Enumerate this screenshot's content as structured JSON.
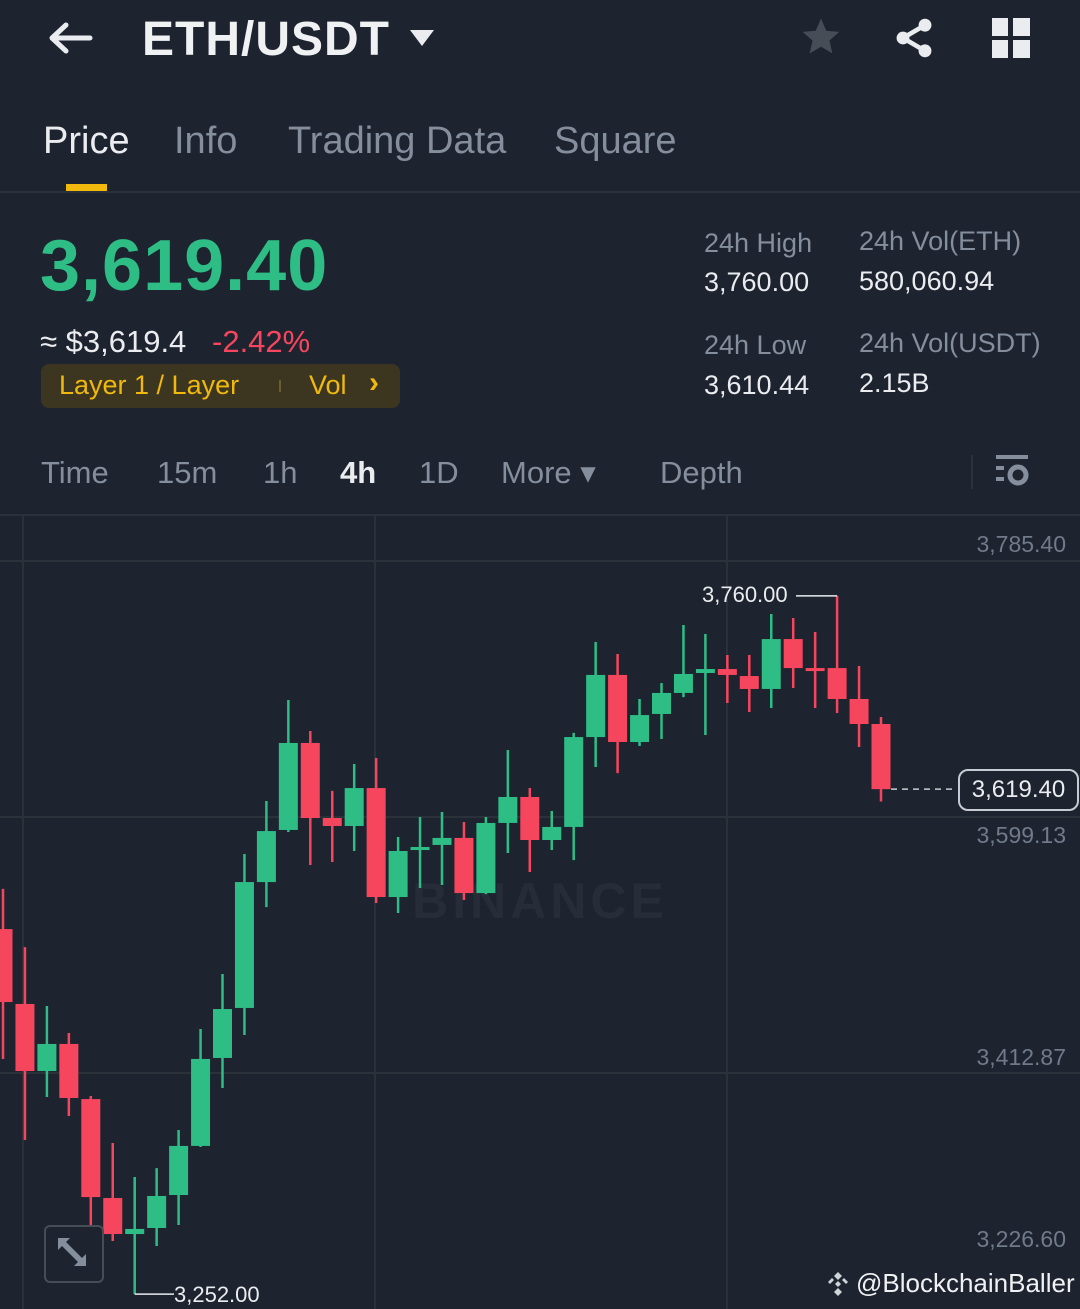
{
  "header": {
    "title": "ETH/USDT",
    "icons": [
      "back-arrow-icon",
      "dropdown-caret-icon",
      "star-icon",
      "share-icon",
      "grid-icon"
    ]
  },
  "tabs": [
    {
      "label": "Price",
      "active": true
    },
    {
      "label": "Info"
    },
    {
      "label": "Trading Data"
    },
    {
      "label": "Square"
    }
  ],
  "ticker": {
    "last_price": "3,619.40",
    "usd_price": "≈ $3,619.4",
    "change": "-2.42%",
    "tag_category": "Layer 1 / Layer",
    "tag_vol": "Vol",
    "tag_chevron": "›"
  },
  "stats": {
    "high_label": "24h High",
    "high": "3,760.00",
    "low_label": "24h Low",
    "low": "3,610.44",
    "vol_eth_label": "24h Vol(ETH)",
    "vol_eth": "580,060.94",
    "vol_usdt_label": "24h Vol(USDT)",
    "vol_usdt": "2.15B"
  },
  "intervals": [
    {
      "label": "Time"
    },
    {
      "label": "15m"
    },
    {
      "label": "1h"
    },
    {
      "label": "4h",
      "active": true
    },
    {
      "label": "1D"
    },
    {
      "label": "More ▾"
    },
    {
      "label": "Depth"
    }
  ],
  "colors": {
    "up": "#2ebd85",
    "down": "#f6465d",
    "accent": "#f0b90b",
    "background": "#1e2330"
  },
  "watermark": "BINANCE",
  "handle": "@BlockchainBaller",
  "chart_data": {
    "type": "candlestick",
    "interval": "4h",
    "y_ticks": [
      "3,785.40",
      "3,599.13",
      "3,412.87",
      "3,226.60"
    ],
    "ylim": [
      3226.6,
      3785.4
    ],
    "grid": true,
    "high_marker": "3,760.00",
    "low_marker": "3,252.00",
    "last_price_label": "3,619.40",
    "candles": [
      {
        "o": 3517.6,
        "h": 3546.8,
        "l": 3423.1,
        "c": 3464.5
      },
      {
        "o": 3463.1,
        "h": 3504.5,
        "l": 3364.1,
        "c": 3414.3
      },
      {
        "o": 3414.3,
        "h": 3461.6,
        "l": 3395.4,
        "c": 3434.0
      },
      {
        "o": 3434.0,
        "h": 3442.0,
        "l": 3381.6,
        "c": 3394.7
      },
      {
        "o": 3393.9,
        "h": 3396.1,
        "l": 3302.3,
        "c": 3322.6
      },
      {
        "o": 3321.9,
        "h": 3361.9,
        "l": 3290.6,
        "c": 3295.7
      },
      {
        "o": 3295.7,
        "h": 3337.2,
        "l": 3252.0,
        "c": 3299.4
      },
      {
        "o": 3300.1,
        "h": 3343.7,
        "l": 3287.0,
        "c": 3323.4
      },
      {
        "o": 3324.1,
        "h": 3371.4,
        "l": 3302.3,
        "c": 3359.8
      },
      {
        "o": 3359.8,
        "h": 3444.9,
        "l": 3359.0,
        "c": 3423.1
      },
      {
        "o": 3423.8,
        "h": 3484.9,
        "l": 3402.0,
        "c": 3459.4
      },
      {
        "o": 3460.2,
        "h": 3572.2,
        "l": 3440.5,
        "c": 3551.8
      },
      {
        "o": 3551.8,
        "h": 3610.8,
        "l": 3533.6,
        "c": 3588.9
      },
      {
        "o": 3589.7,
        "h": 3684.3,
        "l": 3588.2,
        "c": 3653.0
      },
      {
        "o": 3653.0,
        "h": 3661.7,
        "l": 3564.2,
        "c": 3598.4
      },
      {
        "o": 3598.4,
        "h": 3618.1,
        "l": 3566.4,
        "c": 3592.6
      },
      {
        "o": 3592.6,
        "h": 3637.7,
        "l": 3574.4,
        "c": 3620.2
      },
      {
        "o": 3620.2,
        "h": 3642.1,
        "l": 3536.6,
        "c": 3540.9
      },
      {
        "o": 3540.9,
        "h": 3584.6,
        "l": 3529.3,
        "c": 3574.4
      },
      {
        "o": 3575.1,
        "h": 3599.1,
        "l": 3547.5,
        "c": 3577.3
      },
      {
        "o": 3578.8,
        "h": 3602.8,
        "l": 3549.7,
        "c": 3583.9
      },
      {
        "o": 3583.9,
        "h": 3595.5,
        "l": 3538.7,
        "c": 3543.8
      },
      {
        "o": 3543.8,
        "h": 3599.1,
        "l": 3543.0,
        "c": 3594.8
      },
      {
        "o": 3594.8,
        "h": 3647.9,
        "l": 3572.9,
        "c": 3613.7
      },
      {
        "o": 3613.7,
        "h": 3620.2,
        "l": 3559.1,
        "c": 3582.4
      },
      {
        "o": 3582.4,
        "h": 3603.5,
        "l": 3575.1,
        "c": 3591.9
      },
      {
        "o": 3591.9,
        "h": 3660.3,
        "l": 3567.8,
        "c": 3657.3
      },
      {
        "o": 3657.3,
        "h": 3726.5,
        "l": 3635.5,
        "c": 3702.5
      },
      {
        "o": 3702.5,
        "h": 3717.7,
        "l": 3631.1,
        "c": 3653.7
      },
      {
        "o": 3653.7,
        "h": 3685.0,
        "l": 3650.8,
        "c": 3673.3
      },
      {
        "o": 3674.1,
        "h": 3696.6,
        "l": 3655.9,
        "c": 3689.4
      },
      {
        "o": 3689.4,
        "h": 3738.8,
        "l": 3686.4,
        "c": 3703.2
      },
      {
        "o": 3703.9,
        "h": 3732.3,
        "l": 3658.8,
        "c": 3706.8
      },
      {
        "o": 3706.8,
        "h": 3717.0,
        "l": 3682.1,
        "c": 3702.5
      },
      {
        "o": 3701.7,
        "h": 3717.0,
        "l": 3675.5,
        "c": 3692.3
      },
      {
        "o": 3692.3,
        "h": 3746.8,
        "l": 3678.4,
        "c": 3728.6
      },
      {
        "o": 3728.6,
        "h": 3743.9,
        "l": 3693.0,
        "c": 3707.5
      },
      {
        "o": 3707.5,
        "h": 3733.7,
        "l": 3678.4,
        "c": 3706.1
      },
      {
        "o": 3707.5,
        "h": 3760.0,
        "l": 3674.8,
        "c": 3685.0
      },
      {
        "o": 3685.0,
        "h": 3709.0,
        "l": 3650.1,
        "c": 3666.8
      },
      {
        "o": 3666.8,
        "h": 3671.9,
        "l": 3610.44,
        "c": 3619.4
      }
    ]
  }
}
